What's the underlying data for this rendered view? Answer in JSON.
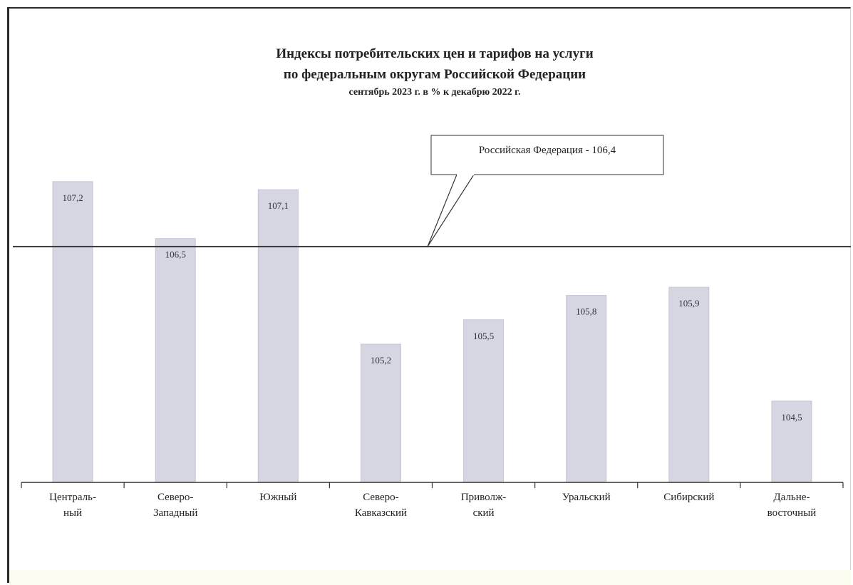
{
  "chart_data": {
    "type": "bar",
    "title": "Индексы потребительских цен и тарифов на услуги",
    "subtitle": "по федеральным округам Российской Федерации",
    "subtitle2": "сентябрь 2023 г. в % к декабрю 2022 г.",
    "categories": [
      [
        "Централь-",
        "ный"
      ],
      [
        "Северо-",
        "Западный"
      ],
      [
        "Южный"
      ],
      [
        "Северо-",
        "Кавказский"
      ],
      [
        "Приволж-",
        "ский"
      ],
      [
        "Уральский"
      ],
      [
        "Сибирский"
      ],
      [
        "Дальне-",
        "восточный"
      ]
    ],
    "values": [
      107.2,
      106.5,
      107.1,
      105.2,
      105.5,
      105.8,
      105.9,
      104.5
    ],
    "value_labels": [
      "107,2",
      "106,5",
      "107,1",
      "105,2",
      "105,5",
      "105,8",
      "105,9",
      "104,5"
    ],
    "reference_line": {
      "value": 106.4,
      "label": "Российская Федерация - 106,4"
    },
    "ylim": [
      103.5,
      107.4
    ],
    "grid": false,
    "legend": "none",
    "colors": {
      "bar": "#d6d6e2",
      "bar_edge": "#c6c6d4",
      "reference_line": "#333333",
      "text": "#222222"
    }
  }
}
